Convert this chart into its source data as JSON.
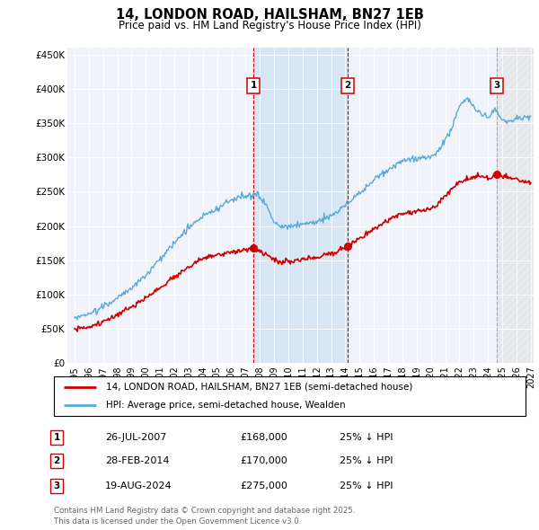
{
  "title": "14, LONDON ROAD, HAILSHAM, BN27 1EB",
  "subtitle": "Price paid vs. HM Land Registry's House Price Index (HPI)",
  "legend_line1": "14, LONDON ROAD, HAILSHAM, BN27 1EB (semi-detached house)",
  "legend_line2": "HPI: Average price, semi-detached house, Wealden",
  "footer": "Contains HM Land Registry data © Crown copyright and database right 2025.\nThis data is licensed under the Open Government Licence v3.0.",
  "transactions": [
    {
      "num": 1,
      "date": "26-JUL-2007",
      "price": 168000,
      "year": 2007.57,
      "label": "25% ↓ HPI",
      "vline_color": "#cc0000"
    },
    {
      "num": 2,
      "date": "28-FEB-2014",
      "price": 170000,
      "year": 2014.16,
      "label": "25% ↓ HPI",
      "vline_color": "#cc0000"
    },
    {
      "num": 3,
      "date": "19-AUG-2024",
      "price": 275000,
      "year": 2024.63,
      "label": "25% ↓ HPI",
      "vline_color": "#aaaaaa"
    }
  ],
  "hpi_color": "#5ba8d8",
  "price_color": "#cc0000",
  "background_plot": "#f0f4fa",
  "ylim": [
    0,
    460000
  ],
  "xlim_start": 1994.5,
  "xlim_end": 2027.2,
  "xticks": [
    1995,
    1996,
    1997,
    1998,
    1999,
    2000,
    2001,
    2002,
    2003,
    2004,
    2005,
    2006,
    2007,
    2008,
    2009,
    2010,
    2011,
    2012,
    2013,
    2014,
    2015,
    2016,
    2017,
    2018,
    2019,
    2020,
    2021,
    2022,
    2023,
    2024,
    2025,
    2026,
    2027
  ],
  "yticks": [
    0,
    50000,
    100000,
    150000,
    200000,
    250000,
    300000,
    350000,
    400000,
    450000
  ],
  "ytick_labels": [
    "£0",
    "£50K",
    "£100K",
    "£150K",
    "£200K",
    "£250K",
    "£300K",
    "£350K",
    "£400K",
    "£450K"
  ]
}
